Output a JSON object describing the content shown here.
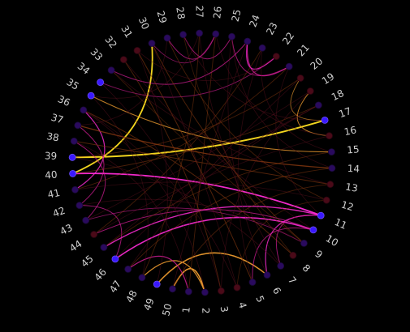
{
  "diagram": {
    "type": "chord",
    "background": "#000000",
    "node_count": 50,
    "labels": [
      "1",
      "2",
      "3",
      "4",
      "5",
      "6",
      "7",
      "8",
      "9",
      "10",
      "11",
      "12",
      "13",
      "14",
      "15",
      "16",
      "17",
      "18",
      "19",
      "20",
      "21",
      "22",
      "23",
      "24",
      "25",
      "26",
      "27",
      "28",
      "29",
      "30",
      "31",
      "32",
      "33",
      "34",
      "35",
      "36",
      "37",
      "38",
      "39",
      "40",
      "41",
      "42",
      "43",
      "44",
      "45",
      "46",
      "47",
      "48",
      "49",
      "50"
    ],
    "node_colors": {
      "default": "#2a0a5e",
      "dark": "#4a0a18",
      "bright": "#3a18ff"
    },
    "bright_nodes": [
      10,
      11,
      17,
      34,
      35,
      39,
      40,
      46,
      49
    ],
    "dark_nodes": [
      3,
      4,
      8,
      12,
      13,
      16,
      19,
      20,
      22,
      31,
      32,
      44
    ],
    "edge_colors": {
      "yellow": "#ffe020",
      "orange": "#f5a030",
      "magenta": "#ff2bd6",
      "pink": "#d81e9a",
      "brown": "#8a3a10",
      "dim": "#5a0f1e"
    },
    "edges": [
      {
        "a": 40,
        "b": 30,
        "c": "yellow",
        "w": 1.8,
        "o": 0.95
      },
      {
        "a": 39,
        "b": 17,
        "c": "yellow",
        "w": 2.0,
        "o": 0.95
      },
      {
        "a": 40,
        "b": 11,
        "c": "magenta",
        "w": 1.8,
        "o": 0.95
      },
      {
        "a": 46,
        "b": 10,
        "c": "magenta",
        "w": 1.6,
        "o": 0.9
      },
      {
        "a": 45,
        "b": 11,
        "c": "magenta",
        "w": 1.4,
        "o": 0.85
      },
      {
        "a": 50,
        "b": 2,
        "c": "orange",
        "w": 1.6,
        "o": 0.95
      },
      {
        "a": 49,
        "b": 6,
        "c": "orange",
        "w": 1.5,
        "o": 0.9
      },
      {
        "a": 48,
        "b": 2,
        "c": "orange",
        "w": 1.3,
        "o": 0.85
      },
      {
        "a": 47,
        "b": 1,
        "c": "pink",
        "w": 1.2,
        "o": 0.8
      },
      {
        "a": 6,
        "b": 11,
        "c": "magenta",
        "w": 1.2,
        "o": 0.8
      },
      {
        "a": 5,
        "b": 10,
        "c": "pink",
        "w": 1.0,
        "o": 0.7
      },
      {
        "a": 7,
        "b": 11,
        "c": "pink",
        "w": 1.0,
        "o": 0.7
      },
      {
        "a": 24,
        "b": 21,
        "c": "pink",
        "w": 1.2,
        "o": 0.8
      },
      {
        "a": 24,
        "b": 22,
        "c": "magenta",
        "w": 1.2,
        "o": 0.8
      },
      {
        "a": 25,
        "b": 21,
        "c": "pink",
        "w": 1.0,
        "o": 0.7
      },
      {
        "a": 29,
        "b": 26,
        "c": "pink",
        "w": 1.0,
        "o": 0.7
      },
      {
        "a": 28,
        "b": 25,
        "c": "pink",
        "w": 1.0,
        "o": 0.7
      },
      {
        "a": 30,
        "b": 26,
        "c": "pink",
        "w": 0.9,
        "o": 0.6
      },
      {
        "a": 16,
        "b": 19,
        "c": "orange",
        "w": 1.0,
        "o": 0.75
      },
      {
        "a": 17,
        "b": 20,
        "c": "orange",
        "w": 0.9,
        "o": 0.65
      },
      {
        "a": 41,
        "b": 36,
        "c": "magenta",
        "w": 1.2,
        "o": 0.8
      },
      {
        "a": 42,
        "b": 37,
        "c": "pink",
        "w": 1.0,
        "o": 0.7
      },
      {
        "a": 43,
        "b": 38,
        "c": "pink",
        "w": 1.0,
        "o": 0.7
      },
      {
        "a": 42,
        "b": 46,
        "c": "pink",
        "w": 1.0,
        "o": 0.7
      },
      {
        "a": 44,
        "b": 10,
        "c": "pink",
        "w": 1.0,
        "o": 0.7
      },
      {
        "a": 43,
        "b": 9,
        "c": "pink",
        "w": 0.9,
        "o": 0.6
      },
      {
        "a": 33,
        "b": 24,
        "c": "pink",
        "w": 1.0,
        "o": 0.7
      },
      {
        "a": 34,
        "b": 22,
        "c": "pink",
        "w": 0.9,
        "o": 0.6
      },
      {
        "a": 35,
        "b": 15,
        "c": "orange",
        "w": 1.1,
        "o": 0.75
      },
      {
        "a": 37,
        "b": 14,
        "c": "brown",
        "w": 1.3,
        "o": 0.8
      },
      {
        "a": 38,
        "b": 13,
        "c": "brown",
        "w": 1.0,
        "o": 0.6
      },
      {
        "a": 36,
        "b": 8,
        "c": "brown",
        "w": 1.0,
        "o": 0.6
      },
      {
        "a": 31,
        "b": 5,
        "c": "brown",
        "w": 1.0,
        "o": 0.6
      },
      {
        "a": 32,
        "b": 3,
        "c": "brown",
        "w": 1.0,
        "o": 0.55
      },
      {
        "a": 30,
        "b": 9,
        "c": "brown",
        "w": 1.0,
        "o": 0.55
      },
      {
        "a": 29,
        "b": 12,
        "c": "brown",
        "w": 0.9,
        "o": 0.5
      },
      {
        "a": 27,
        "b": 48,
        "c": "brown",
        "w": 0.9,
        "o": 0.5
      },
      {
        "a": 26,
        "b": 1,
        "c": "brown",
        "w": 0.9,
        "o": 0.5
      },
      {
        "a": 23,
        "b": 44,
        "c": "brown",
        "w": 0.9,
        "o": 0.5
      },
      {
        "a": 21,
        "b": 41,
        "c": "brown",
        "w": 0.9,
        "o": 0.5
      },
      {
        "a": 20,
        "b": 39,
        "c": "brown",
        "w": 0.9,
        "o": 0.5
      },
      {
        "a": 18,
        "b": 40,
        "c": "brown",
        "w": 0.9,
        "o": 0.55
      },
      {
        "a": 15,
        "b": 45,
        "c": "brown",
        "w": 0.9,
        "o": 0.5
      },
      {
        "a": 14,
        "b": 47,
        "c": "brown",
        "w": 0.9,
        "o": 0.5
      },
      {
        "a": 13,
        "b": 50,
        "c": "brown",
        "w": 0.9,
        "o": 0.5
      },
      {
        "a": 12,
        "b": 4,
        "c": "brown",
        "w": 0.8,
        "o": 0.45
      },
      {
        "a": 9,
        "b": 33,
        "c": "brown",
        "w": 0.8,
        "o": 0.45
      },
      {
        "a": 8,
        "b": 28,
        "c": "brown",
        "w": 0.8,
        "o": 0.45
      },
      {
        "a": 7,
        "b": 27,
        "c": "dim",
        "w": 0.8,
        "o": 0.5
      },
      {
        "a": 6,
        "b": 25,
        "c": "dim",
        "w": 0.8,
        "o": 0.5
      },
      {
        "a": 5,
        "b": 23,
        "c": "dim",
        "w": 0.8,
        "o": 0.5
      },
      {
        "a": 4,
        "b": 30,
        "c": "dim",
        "w": 0.8,
        "o": 0.5
      },
      {
        "a": 3,
        "b": 34,
        "c": "dim",
        "w": 0.8,
        "o": 0.5
      },
      {
        "a": 2,
        "b": 36,
        "c": "dim",
        "w": 0.8,
        "o": 0.5
      },
      {
        "a": 1,
        "b": 38,
        "c": "dim",
        "w": 0.8,
        "o": 0.5
      },
      {
        "a": 49,
        "b": 31,
        "c": "dim",
        "w": 0.8,
        "o": 0.5
      },
      {
        "a": 48,
        "b": 35,
        "c": "dim",
        "w": 0.8,
        "o": 0.5
      },
      {
        "a": 47,
        "b": 20,
        "c": "dim",
        "w": 0.8,
        "o": 0.5
      },
      {
        "a": 45,
        "b": 18,
        "c": "dim",
        "w": 0.8,
        "o": 0.5
      },
      {
        "a": 44,
        "b": 16,
        "c": "dim",
        "w": 0.8,
        "o": 0.5
      },
      {
        "a": 43,
        "b": 19,
        "c": "dim",
        "w": 0.8,
        "o": 0.5
      },
      {
        "a": 41,
        "b": 12,
        "c": "dim",
        "w": 0.8,
        "o": 0.5
      },
      {
        "a": 39,
        "b": 7,
        "c": "dim",
        "w": 0.8,
        "o": 0.5
      },
      {
        "a": 37,
        "b": 29,
        "c": "dim",
        "w": 0.8,
        "o": 0.5
      },
      {
        "a": 35,
        "b": 27,
        "c": "dim",
        "w": 0.8,
        "o": 0.5
      },
      {
        "a": 33,
        "b": 13,
        "c": "dim",
        "w": 0.8,
        "o": 0.5
      },
      {
        "a": 32,
        "b": 10,
        "c": "dim",
        "w": 0.8,
        "o": 0.5
      },
      {
        "a": 31,
        "b": 22,
        "c": "dim",
        "w": 0.8,
        "o": 0.5
      },
      {
        "a": 28,
        "b": 17,
        "c": "dim",
        "w": 0.8,
        "o": 0.5
      },
      {
        "a": 26,
        "b": 16,
        "c": "dim",
        "w": 0.8,
        "o": 0.5
      },
      {
        "a": 25,
        "b": 14,
        "c": "dim",
        "w": 0.8,
        "o": 0.5
      },
      {
        "a": 23,
        "b": 15,
        "c": "dim",
        "w": 0.8,
        "o": 0.5
      },
      {
        "a": 21,
        "b": 11,
        "c": "dim",
        "w": 0.8,
        "o": 0.5
      },
      {
        "a": 19,
        "b": 3,
        "c": "dim",
        "w": 0.8,
        "o": 0.5
      },
      {
        "a": 18,
        "b": 46,
        "c": "dim",
        "w": 0.8,
        "o": 0.5
      },
      {
        "a": 50,
        "b": 24,
        "c": "dim",
        "w": 0.8,
        "o": 0.5
      },
      {
        "a": 42,
        "b": 9,
        "c": "dim",
        "w": 0.8,
        "o": 0.5
      },
      {
        "a": 36,
        "b": 4,
        "c": "dim",
        "w": 0.8,
        "o": 0.5
      }
    ]
  }
}
